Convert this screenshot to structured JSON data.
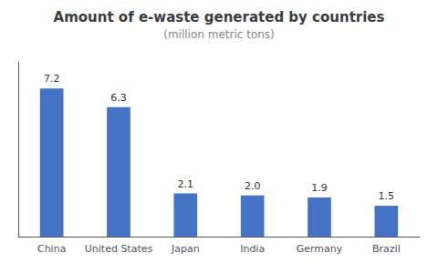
{
  "chart_data": {
    "type": "bar",
    "title": "Amount of e-waste generated by countries",
    "subtitle": "(million metric tons)",
    "categories": [
      "China",
      "United States",
      "Japan",
      "India",
      "Germany",
      "Brazil"
    ],
    "values": [
      7.2,
      6.3,
      2.1,
      2.0,
      1.9,
      1.5
    ],
    "value_labels": [
      "7.2",
      "6.3",
      "2.1",
      "2.0",
      "1.9",
      "1.5"
    ],
    "color": "#4472C4",
    "ylim": [
      0,
      8.5
    ],
    "grid": false,
    "data_labels": true,
    "tick_labels": "x"
  }
}
